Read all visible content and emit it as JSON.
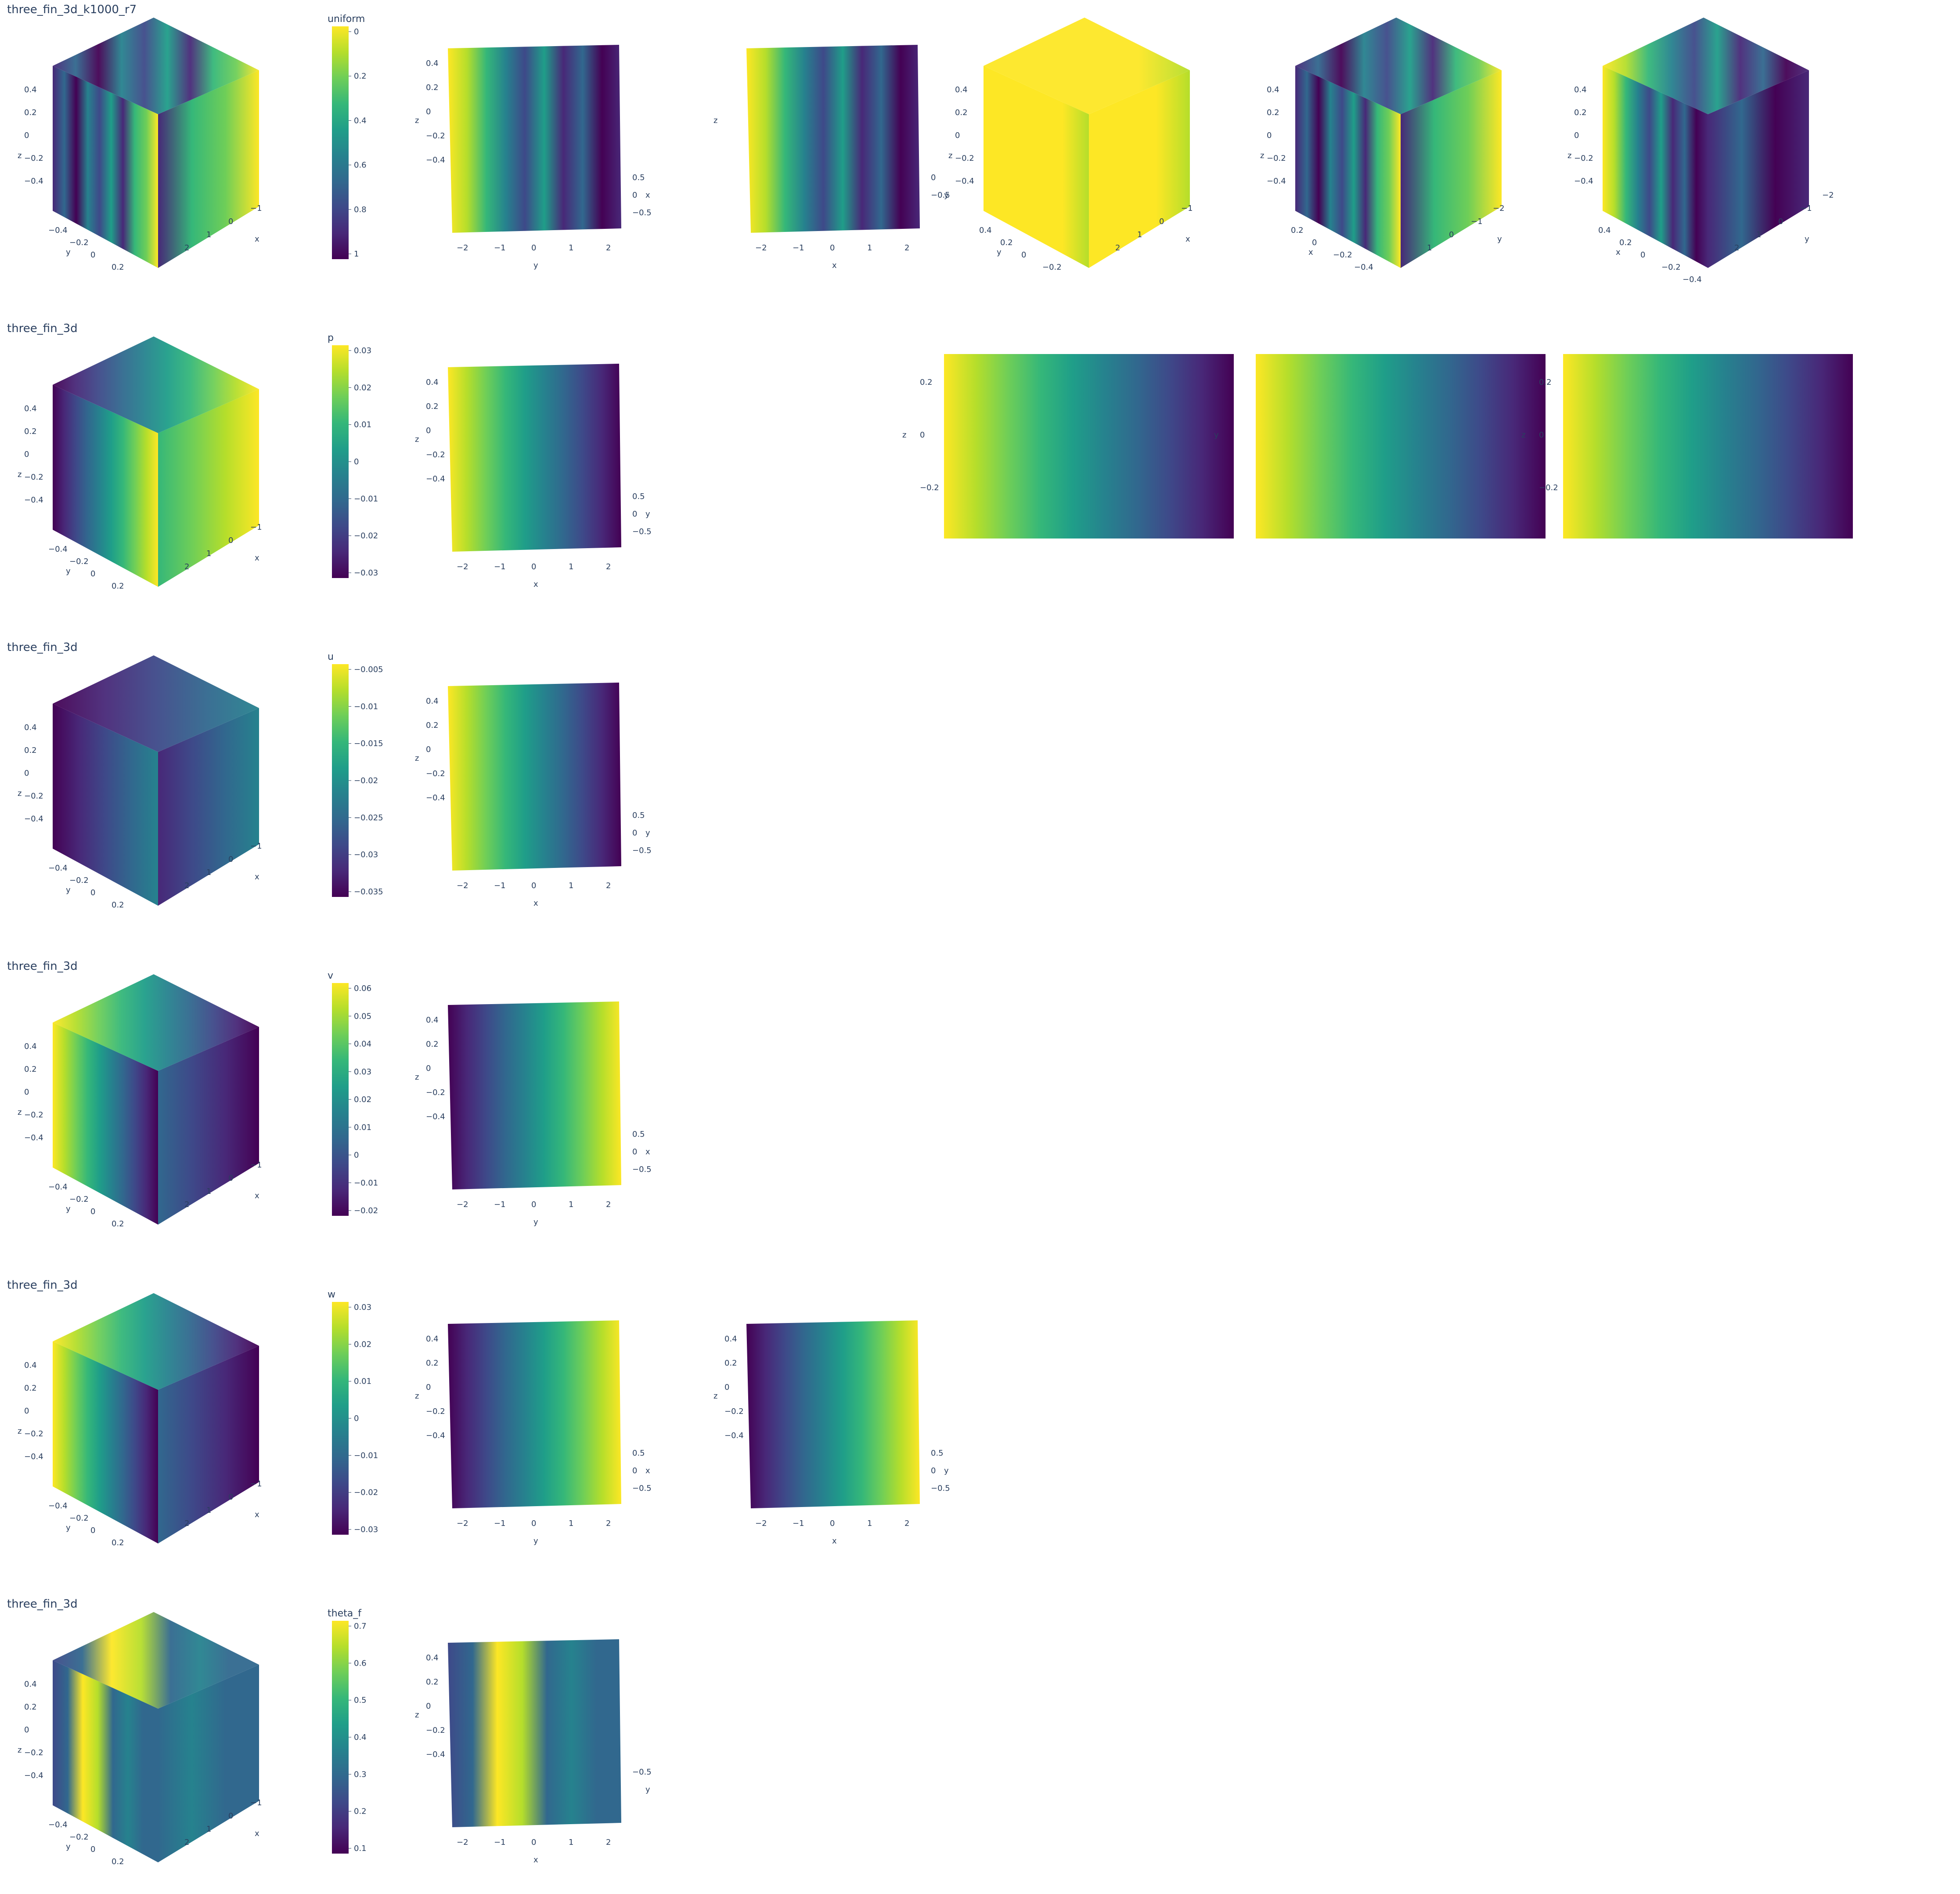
{
  "colors": {
    "viridis": [
      "#440154",
      "#482878",
      "#3e4989",
      "#31688e",
      "#26828e",
      "#1f9e89",
      "#35b779",
      "#6ece58",
      "#b5de2b",
      "#fde725"
    ],
    "axis_line": "#e5ecf6",
    "text": "#2a3f5f"
  },
  "chart_data": [
    {
      "type": "scatter3d",
      "row_title": "three_fin_3d_k1000_r7",
      "colorbar_title": "uniform",
      "colorbar_ticks": [
        "0",
        "0.2",
        "0.4",
        "0.6",
        "0.8",
        "1"
      ],
      "colorbar_range": [
        0,
        1
      ],
      "views": [
        {
          "kind": "iso",
          "pattern": "stripes-x",
          "dir": "right-bright",
          "ticks": {
            "z": [
              "0.4",
              "0.2",
              "0",
              "−0.2",
              "−0.4"
            ],
            "y": [
              "−0.4",
              "−0.2",
              "0",
              "0.2"
            ],
            "x": [
              "2",
              "1",
              "0",
              "−1"
            ],
            "labels": [
              "z",
              "y",
              "x"
            ]
          }
        },
        {
          "kind": "front-tilt",
          "pattern": "stripes-x",
          "dir": "left-bright",
          "ticks": {
            "z": [
              "0.4",
              "0.2",
              "0",
              "−0.2",
              "−0.4"
            ],
            "x": [
              "−2",
              "−1",
              "0",
              "1",
              "2"
            ],
            "y": [
              "0.5",
              "0",
              "−0.5"
            ],
            "labels": [
              "z",
              "x",
              "y"
            ]
          }
        },
        {
          "kind": "top",
          "pattern": "stripes-x",
          "dir": "left-bright",
          "ticks": {
            "y": [
              "0",
              "−0.5"
            ],
            "x": [
              "−2",
              "−1",
              "0",
              "1",
              "2"
            ],
            "labels": [
              "z",
              "y",
              "x"
            ]
          }
        },
        {
          "kind": "iso",
          "pattern": "bright-box",
          "dir": "left-bright",
          "ticks": {
            "z": [
              "0.4",
              "0.2",
              "0",
              "−0.2",
              "−0.4"
            ],
            "y": [
              "0.4",
              "0.2",
              "0",
              "−0.2"
            ],
            "x": [
              "2",
              "1",
              "0",
              "−1"
            ],
            "labels": [
              "z",
              "y",
              "x"
            ]
          }
        },
        {
          "kind": "iso",
          "pattern": "stripes-x",
          "dir": "right-bright",
          "ticks": {
            "z": [
              "0.4",
              "0.2",
              "0",
              "−0.2",
              "−0.4"
            ],
            "x": [
              "1",
              "0",
              "−1",
              "−2"
            ],
            "y": [
              "0.2",
              "0",
              "−0.2",
              "−0.4"
            ],
            "labels": [
              "z",
              "x",
              "y"
            ]
          }
        },
        {
          "kind": "iso-tilt",
          "pattern": "stripes-x",
          "dir": "left-bright",
          "ticks": {
            "z": [
              "0.4",
              "0.2",
              "0",
              "−0.2",
              "−0.4"
            ],
            "x": [
              "2",
              "1",
              "0",
              "−1",
              "−2"
            ],
            "y": [
              "0.4",
              "0.2",
              "0",
              "−0.2",
              "−0.4"
            ],
            "labels": [
              "z",
              "x",
              "y"
            ]
          }
        }
      ]
    },
    {
      "type": "scatter3d",
      "row_title": "three_fin_3d",
      "colorbar_title": "p",
      "colorbar_ticks": [
        "0.03",
        "0.02",
        "0.01",
        "0",
        "−0.01",
        "−0.02",
        "−0.03"
      ],
      "colorbar_range": [
        -0.035,
        0.035
      ],
      "views": [
        {
          "kind": "iso",
          "pattern": "gradient-x",
          "dir": "right-bright",
          "ticks": {
            "z": [
              "0.4",
              "0.2",
              "0",
              "−0.2",
              "−0.4"
            ],
            "y": [
              "−0.4",
              "−0.2",
              "0",
              "0.2"
            ],
            "x": [
              "2",
              "1",
              "0",
              "−1"
            ],
            "labels": [
              "z",
              "y",
              "x"
            ]
          }
        },
        {
          "kind": "front-tilt",
          "pattern": "gradient-x",
          "dir": "left-bright",
          "ticks": {
            "z": [
              "0.4",
              "0.2",
              "0",
              "−0.2",
              "−0.4"
            ],
            "y": [
              "0.5",
              "0",
              "−0.5"
            ],
            "x": [
              "−2",
              "−1",
              "0",
              "1",
              "2"
            ],
            "labels": [
              "z",
              "y",
              "x"
            ]
          }
        },
        {
          "kind": "empty"
        },
        {
          "kind": "flat",
          "pattern": "gradient-x",
          "dir": "left-bright",
          "ticks": {
            "z": [
              "0.2",
              "0",
              "−0.2"
            ],
            "labels": [
              "z"
            ]
          }
        },
        {
          "kind": "flat",
          "pattern": "gradient-x",
          "dir": "left-bright",
          "ticks": {
            "z": [],
            "labels": [
              "y"
            ]
          }
        },
        {
          "kind": "flat",
          "pattern": "gradient-x",
          "dir": "left-bright",
          "ticks": {
            "z": [
              "0.2",
              "0",
              "−0.2"
            ],
            "labels": [
              "z"
            ]
          }
        }
      ]
    },
    {
      "type": "scatter3d",
      "row_title": "three_fin_3d",
      "colorbar_title": "u",
      "colorbar_ticks": [
        "−0.005",
        "−0.01",
        "−0.015",
        "−0.02",
        "−0.025",
        "−0.03",
        "−0.035"
      ],
      "colorbar_range": [
        -0.038,
        -0.002
      ],
      "views": [
        {
          "kind": "iso",
          "pattern": "gradient-x",
          "dir": "left-dark",
          "ticks": {
            "z": [
              "0.4",
              "0.2",
              "0",
              "−0.2",
              "−0.4"
            ],
            "y": [
              "−0.4",
              "−0.2",
              "0",
              "0.2"
            ],
            "x": [
              "2",
              "1",
              "0",
              "−1"
            ],
            "labels": [
              "z",
              "y",
              "x"
            ]
          }
        },
        {
          "kind": "front-tilt",
          "pattern": "gradient-x",
          "dir": "left-bright",
          "ticks": {
            "z": [
              "0.4",
              "0.2",
              "0",
              "−0.2",
              "−0.4"
            ],
            "y": [
              "0.5",
              "0",
              "−0.5"
            ],
            "x": [
              "−2",
              "−1",
              "0",
              "1",
              "2"
            ],
            "labels": [
              "z",
              "y",
              "x"
            ]
          }
        }
      ]
    },
    {
      "type": "scatter3d",
      "row_title": "three_fin_3d",
      "colorbar_title": "v",
      "colorbar_ticks": [
        "0.06",
        "0.05",
        "0.04",
        "0.03",
        "0.02",
        "0.01",
        "0",
        "−0.01",
        "−0.02"
      ],
      "colorbar_range": [
        -0.025,
        0.065
      ],
      "views": [
        {
          "kind": "iso",
          "pattern": "gradient-x",
          "dir": "left-bright",
          "ticks": {
            "z": [
              "0.4",
              "0.2",
              "0",
              "−0.2",
              "−0.4"
            ],
            "y": [
              "−0.4",
              "−0.2",
              "0",
              "0.2"
            ],
            "x": [
              "2",
              "1",
              "0",
              "−1"
            ],
            "labels": [
              "z",
              "y",
              "x"
            ]
          }
        },
        {
          "kind": "front-tilt",
          "pattern": "gradient-x",
          "dir": "right-bright",
          "ticks": {
            "z": [
              "0.4",
              "0.2",
              "0",
              "−0.2",
              "−0.4"
            ],
            "x": [
              "−2",
              "−1",
              "0",
              "1",
              "2"
            ],
            "y": [
              "0.5",
              "0",
              "−0.5"
            ],
            "labels": [
              "z",
              "x",
              "y"
            ]
          }
        }
      ]
    },
    {
      "type": "scatter3d",
      "row_title": "three_fin_3d",
      "colorbar_title": "w",
      "colorbar_ticks": [
        "0.03",
        "0.02",
        "0.01",
        "0",
        "−0.01",
        "−0.02",
        "−0.03"
      ],
      "colorbar_range": [
        -0.035,
        0.035
      ],
      "views": [
        {
          "kind": "iso",
          "pattern": "gradient-x",
          "dir": "left-bright",
          "ticks": {
            "z": [
              "0.4",
              "0.2",
              "0",
              "−0.2",
              "−0.4"
            ],
            "y": [
              "−0.4",
              "−0.2",
              "0",
              "0.2"
            ],
            "x": [
              "2",
              "1",
              "0",
              "−1"
            ],
            "labels": [
              "z",
              "y",
              "x"
            ]
          }
        },
        {
          "kind": "front-tilt",
          "pattern": "gradient-x",
          "dir": "right-bright",
          "ticks": {
            "z": [
              "0.4",
              "0.2",
              "0",
              "−0.2",
              "−0.4"
            ],
            "x": [
              "−2",
              "−1",
              "0",
              "1",
              "2"
            ],
            "y": [
              "0.5",
              "0",
              "−0.5"
            ],
            "labels": [
              "z",
              "x",
              "y"
            ]
          }
        },
        {
          "kind": "front-tilt",
          "pattern": "gradient-x",
          "dir": "right-bright",
          "ticks": {
            "z": [
              "0.4",
              "0.2",
              "0",
              "−0.2",
              "−0.4"
            ],
            "y": [
              "0.5",
              "0",
              "−0.5"
            ],
            "x": [
              "−2",
              "−1",
              "0",
              "1",
              "2"
            ],
            "labels": [
              "z",
              "y",
              "x"
            ]
          }
        }
      ]
    },
    {
      "type": "scatter3d",
      "row_title": "three_fin_3d",
      "colorbar_title": "theta_f",
      "colorbar_ticks": [
        "0.7",
        "0.6",
        "0.5",
        "0.4",
        "0.3",
        "0.2",
        "0.1"
      ],
      "colorbar_range": [
        0.08,
        0.72
      ],
      "views": [
        {
          "kind": "iso",
          "pattern": "band-x",
          "dir": "mid-bright",
          "ticks": {
            "z": [
              "0.4",
              "0.2",
              "0",
              "−0.2",
              "−0.4"
            ],
            "y": [
              "−0.4",
              "−0.2",
              "0",
              "0.2"
            ],
            "x": [
              "2",
              "1",
              "0",
              "−1"
            ],
            "labels": [
              "z",
              "y",
              "x"
            ]
          }
        },
        {
          "kind": "front-tilt",
          "pattern": "band-x",
          "dir": "mid-bright",
          "ticks": {
            "z": [
              "0.4",
              "0.2",
              "0",
              "−0.2",
              "−0.4"
            ],
            "y": [
              "−0.5"
            ],
            "x": [
              "−2",
              "−1",
              "0",
              "1",
              "2"
            ],
            "labels": [
              "z",
              "y",
              "x"
            ]
          }
        }
      ]
    }
  ]
}
